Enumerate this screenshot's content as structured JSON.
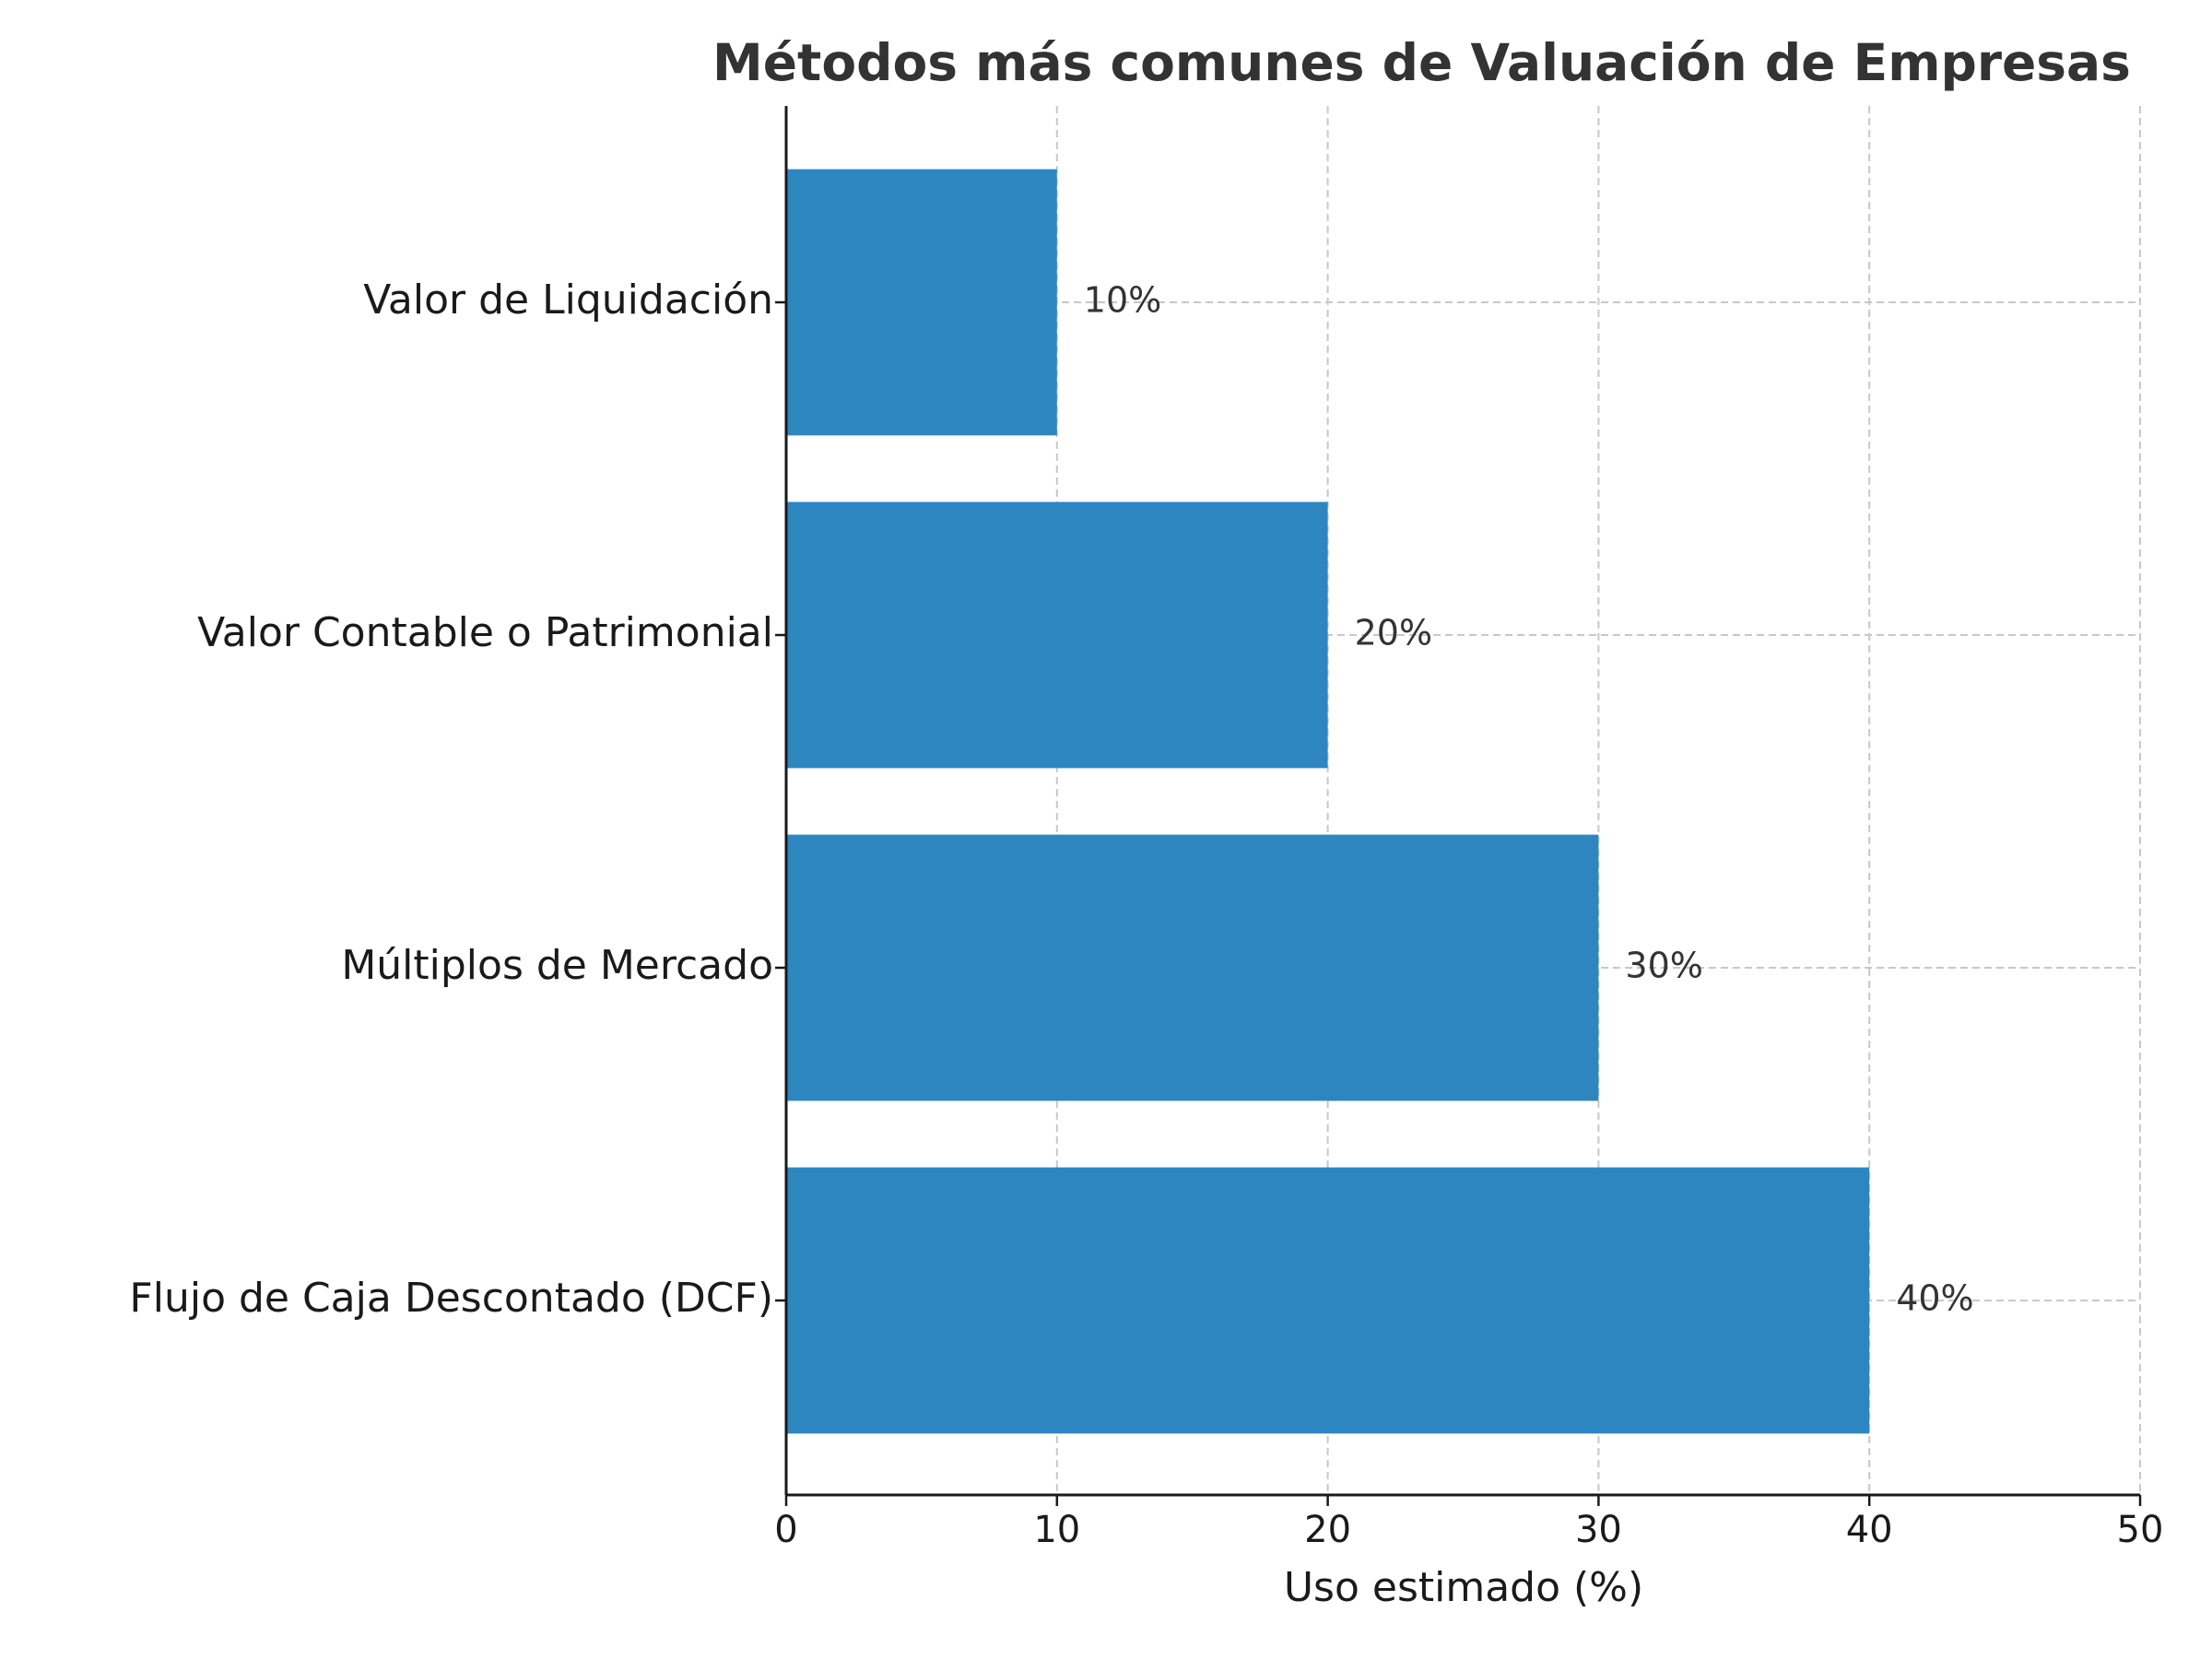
{
  "chart_data": {
    "type": "barh",
    "title": "Métodos más comunes de Valuación de Empresas",
    "xlabel": "Uso estimado (%)",
    "categories": [
      "Flujo de Caja Descontado (DCF)",
      "Múltiplos de Mercado",
      "Valor Contable o Patrimonial",
      "Valor de Liquidación"
    ],
    "values": [
      40,
      30,
      20,
      10
    ],
    "value_labels": [
      "40%",
      "30%",
      "20%",
      "10%"
    ],
    "color": "#2e86c1",
    "xlim": [
      0,
      50
    ],
    "xticks": [
      0,
      10,
      20,
      30,
      40,
      50
    ],
    "grid": true
  }
}
